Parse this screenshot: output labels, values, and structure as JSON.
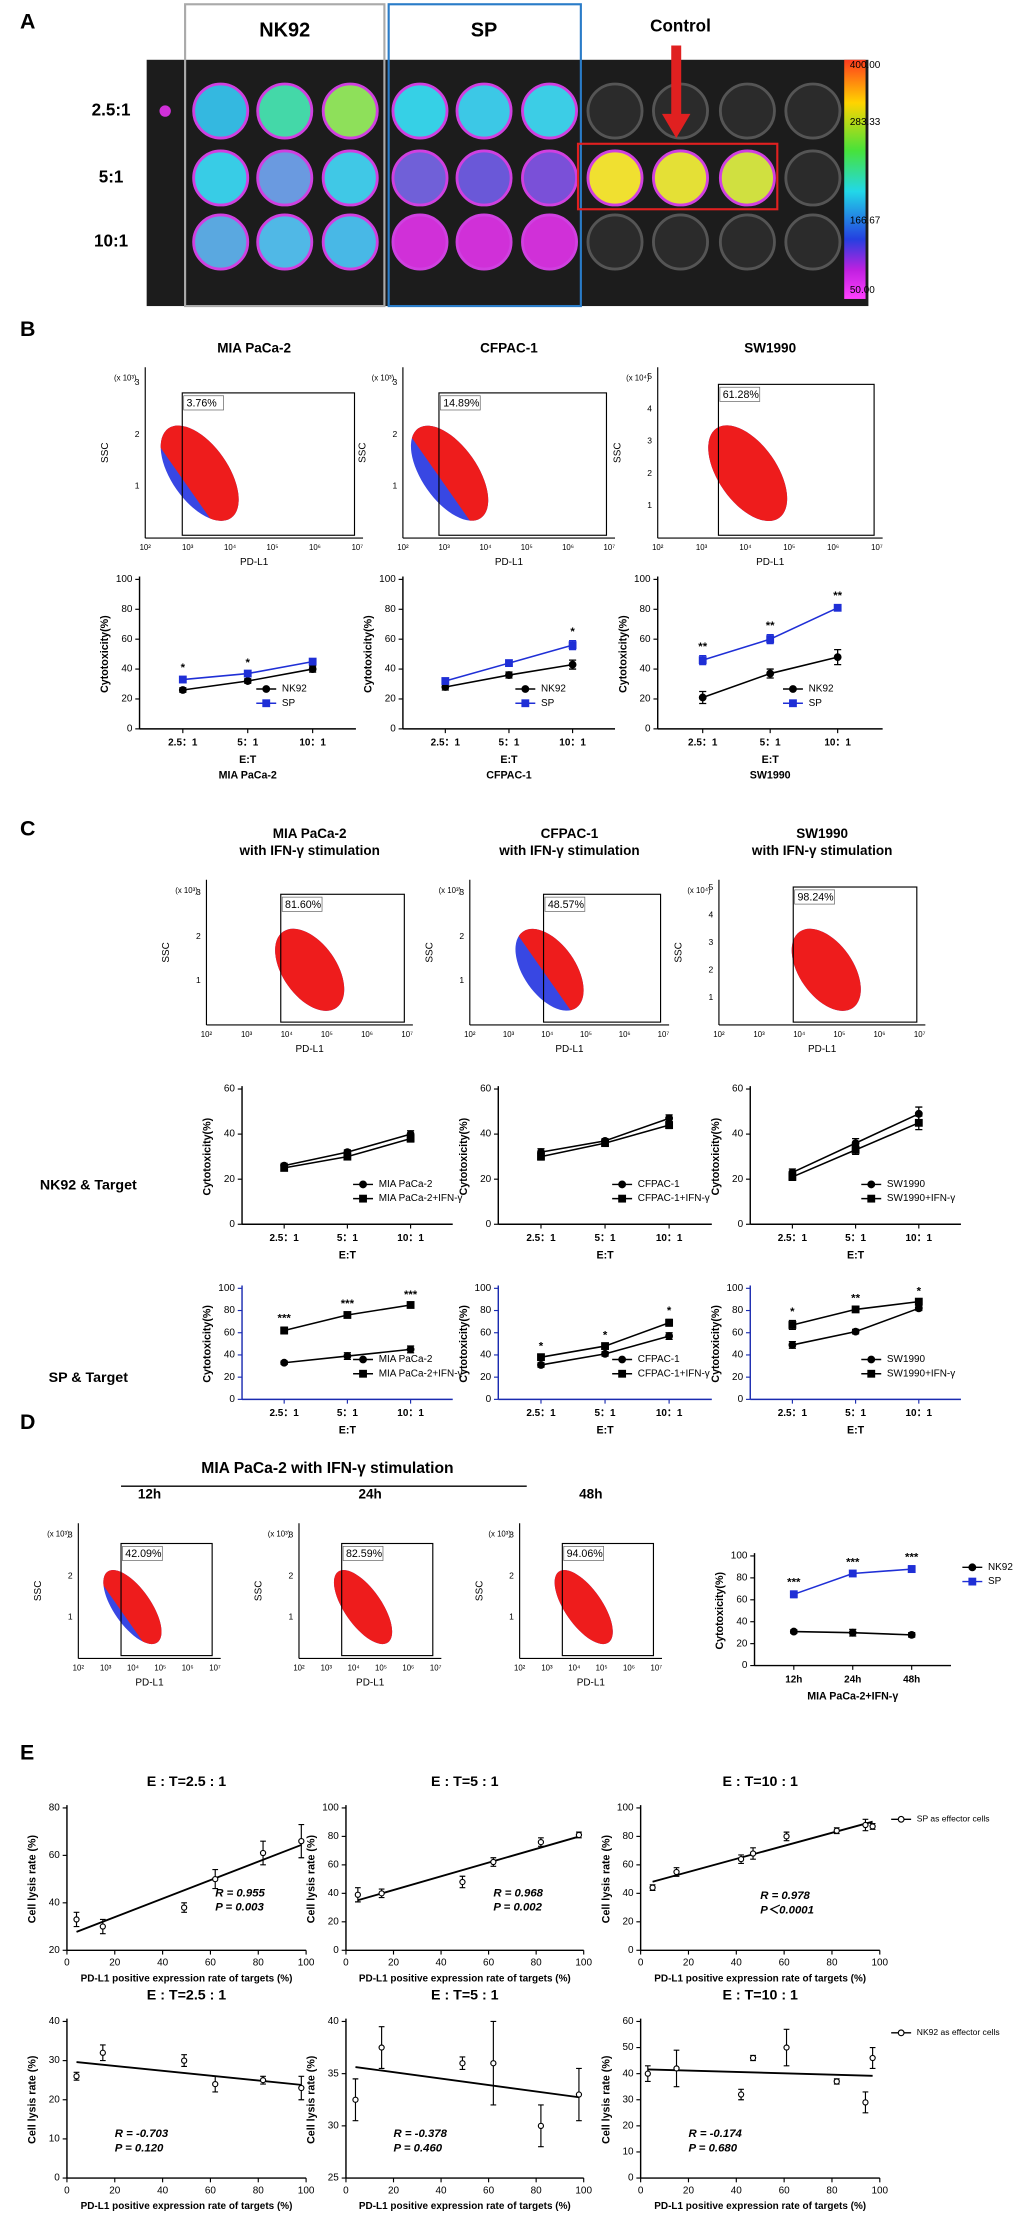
{
  "panel_labels": [
    "A",
    "B",
    "C",
    "D",
    "E"
  ],
  "plate": {
    "groups": [
      "NK92",
      "SP",
      "Control"
    ],
    "ratios": [
      "2.5:1",
      "5:1",
      "10:1"
    ],
    "colorbar_ticks": [
      "400.00",
      "283.33",
      "166.67",
      "50.00"
    ]
  },
  "row_labels": [
    "NK92 & Target",
    "SP & Target"
  ],
  "panel_d_title": "MIA PaCa-2 with IFN-γ stimulation",
  "flow_plots": [
    {
      "title": [
        "MIA PaCa-2"
      ],
      "gate": "3.76%",
      "xlabel": "PD-L1",
      "ylabel": "SSC",
      "multiplier": "(x 10³)",
      "yticks": [
        "1",
        "2",
        "3"
      ],
      "xticks": [
        "10²",
        "10³",
        "10⁴",
        "10⁵",
        "10⁶",
        "10⁷"
      ]
    },
    {
      "title": [
        "CFPAC-1"
      ],
      "gate": "14.89%",
      "xlabel": "PD-L1",
      "ylabel": "SSC",
      "multiplier": "(x 10³)",
      "yticks": [
        "1",
        "2",
        "3"
      ],
      "xticks": [
        "10²",
        "10³",
        "10⁴",
        "10⁵",
        "10⁶",
        "10⁷"
      ]
    },
    {
      "title": [
        "SW1990"
      ],
      "gate": "61.28%",
      "xlabel": "PD-L1",
      "ylabel": "SSC",
      "multiplier": "(x 10⁴)",
      "yticks": [
        "1",
        "2",
        "3",
        "4",
        "5"
      ],
      "xticks": [
        "10²",
        "10³",
        "10⁴",
        "10⁵",
        "10⁶",
        "10⁷"
      ]
    },
    {
      "title": [
        "MIA PaCa-2",
        "with IFN-γ stimulation"
      ],
      "gate": "81.60%",
      "xlabel": "PD-L1",
      "ylabel": "SSC",
      "multiplier": "(x 10³)",
      "yticks": [
        "1",
        "2",
        "3"
      ],
      "xticks": [
        "10²",
        "10³",
        "10⁴",
        "10⁵",
        "10⁶",
        "10⁷"
      ]
    },
    {
      "title": [
        "CFPAC-1",
        "with IFN-γ stimulation"
      ],
      "gate": "48.57%",
      "xlabel": "PD-L1",
      "ylabel": "SSC",
      "multiplier": "(x 10³)",
      "yticks": [
        "1",
        "2",
        "3"
      ],
      "xticks": [
        "10²",
        "10³",
        "10⁴",
        "10⁵",
        "10⁶",
        "10⁷"
      ]
    },
    {
      "title": [
        "SW1990",
        "with IFN-γ stimulation"
      ],
      "gate": "98.24%",
      "xlabel": "PD-L1",
      "ylabel": "SSC",
      "multiplier": "(x 10⁴)",
      "yticks": [
        "1",
        "2",
        "3",
        "4",
        "5"
      ],
      "xticks": [
        "10²",
        "10³",
        "10⁴",
        "10⁵",
        "10⁶",
        "10⁷"
      ]
    },
    {
      "title": [
        "12h"
      ],
      "gate": "42.09%",
      "xlabel": "PD-L1",
      "ylabel": "SSC",
      "multiplier": "(x 10³)",
      "yticks": [
        "1",
        "2",
        "3"
      ],
      "xticks": [
        "10²",
        "10³",
        "10⁴",
        "10⁵",
        "10⁶",
        "10⁷"
      ]
    },
    {
      "title": [
        "24h"
      ],
      "gate": "82.59%",
      "xlabel": "PD-L1",
      "ylabel": "SSC",
      "multiplier": "(x 10³)",
      "yticks": [
        "1",
        "2",
        "3"
      ],
      "xticks": [
        "10²",
        "10³",
        "10⁴",
        "10⁵",
        "10⁶",
        "10⁷"
      ]
    },
    {
      "title": [
        "48h"
      ],
      "gate": "94.06%",
      "xlabel": "PD-L1",
      "ylabel": "SSC",
      "multiplier": "(x 10³)",
      "yticks": [
        "1",
        "2",
        "3"
      ],
      "xticks": [
        "10²",
        "10³",
        "10⁴",
        "10⁵",
        "10⁶",
        "10⁷"
      ]
    }
  ],
  "chart_data": [
    {
      "type": "line",
      "ylabel": "Cytotoxicity(%)",
      "xlabel": "E:T",
      "subtitle": "MIA PaCa-2",
      "categories": [
        "2.5：1",
        "5：1",
        "10：1"
      ],
      "ylim": [
        0,
        100
      ],
      "yticks": [
        0,
        20,
        40,
        60,
        80,
        100
      ],
      "legend": "lower right",
      "significance": [
        "*",
        "*",
        null
      ],
      "series": [
        {
          "name": "NK92",
          "color": "#000000",
          "marker": "circle",
          "values": [
            26,
            32,
            40
          ],
          "errors": [
            1.5,
            1.5,
            2
          ]
        },
        {
          "name": "SP",
          "color": "#1f2fd6",
          "marker": "square",
          "values": [
            33,
            37,
            45
          ],
          "errors": [
            2,
            1.5,
            1.5
          ]
        }
      ]
    },
    {
      "type": "line",
      "ylabel": "Cytotoxicity(%)",
      "xlabel": "E:T",
      "subtitle": "CFPAC-1",
      "categories": [
        "2.5：1",
        "5：1",
        "10：1"
      ],
      "ylim": [
        0,
        100
      ],
      "yticks": [
        0,
        20,
        40,
        60,
        80,
        100
      ],
      "legend": "lower right",
      "significance": [
        null,
        null,
        "*"
      ],
      "series": [
        {
          "name": "NK92",
          "color": "#000000",
          "marker": "circle",
          "values": [
            28,
            36,
            43
          ],
          "errors": [
            2,
            2,
            3
          ]
        },
        {
          "name": "SP",
          "color": "#1f2fd6",
          "marker": "square",
          "values": [
            32,
            44,
            56
          ],
          "errors": [
            2,
            2,
            3
          ]
        }
      ]
    },
    {
      "type": "line",
      "ylabel": "Cytotoxicity(%)",
      "xlabel": "E:T",
      "subtitle": "SW1990",
      "categories": [
        "2.5：1",
        "5：1",
        "10：1"
      ],
      "ylim": [
        0,
        100
      ],
      "yticks": [
        0,
        20,
        40,
        60,
        80,
        100
      ],
      "legend": "lower right",
      "significance": [
        "**",
        "**",
        "**"
      ],
      "series": [
        {
          "name": "NK92",
          "color": "#000000",
          "marker": "circle",
          "values": [
            21,
            37,
            48
          ],
          "errors": [
            4,
            3,
            5
          ]
        },
        {
          "name": "SP",
          "color": "#1f2fd6",
          "marker": "square",
          "values": [
            46,
            60,
            81
          ],
          "errors": [
            3,
            3,
            2
          ]
        }
      ]
    },
    {
      "type": "line",
      "ylabel": "Cytotoxicity(%)",
      "xlabel": "E:T",
      "categories": [
        "2.5：1",
        "5：1",
        "10：1"
      ],
      "ylim": [
        0,
        60
      ],
      "yticks": [
        0,
        20,
        40,
        60
      ],
      "legend": "lower right",
      "series": [
        {
          "name": "MIA PaCa-2",
          "color": "#000000",
          "marker": "circle",
          "values": [
            26,
            32,
            40
          ],
          "errors": [
            1,
            1,
            1.5
          ]
        },
        {
          "name": "MIA PaCa-2+IFN-γ",
          "color": "#000000",
          "marker": "square",
          "values": [
            25,
            30,
            38
          ],
          "errors": [
            1,
            1,
            1.5
          ]
        }
      ]
    },
    {
      "type": "line",
      "ylabel": "Cytotoxicity(%)",
      "xlabel": "E:T",
      "categories": [
        "2.5：1",
        "5：1",
        "10：1"
      ],
      "ylim": [
        0,
        60
      ],
      "yticks": [
        0,
        20,
        40,
        60
      ],
      "legend": "lower right",
      "series": [
        {
          "name": "CFPAC-1",
          "color": "#000000",
          "marker": "circle",
          "values": [
            32,
            37,
            47
          ],
          "errors": [
            1.5,
            1,
            1.5
          ]
        },
        {
          "name": "CFPAC-1+IFN-γ",
          "color": "#000000",
          "marker": "square",
          "values": [
            30,
            36,
            44
          ],
          "errors": [
            1.5,
            1,
            1.5
          ]
        }
      ]
    },
    {
      "type": "line",
      "ylabel": "Cytotoxicity(%)",
      "xlabel": "E:T",
      "categories": [
        "2.5：1",
        "5：1",
        "10：1"
      ],
      "ylim": [
        0,
        60
      ],
      "yticks": [
        0,
        20,
        40,
        60
      ],
      "legend": "lower right",
      "series": [
        {
          "name": "SW1990",
          "color": "#000000",
          "marker": "circle",
          "values": [
            23,
            36,
            49
          ],
          "errors": [
            1.5,
            2,
            3
          ]
        },
        {
          "name": "SW1990+IFN-γ",
          "color": "#000000",
          "marker": "square",
          "values": [
            21,
            33,
            45
          ],
          "errors": [
            1.5,
            2,
            3
          ]
        }
      ]
    },
    {
      "type": "line",
      "ylabel": "Cytotoxicity(%)",
      "xlabel": "E:T",
      "categories": [
        "2.5：1",
        "5：1",
        "10：1"
      ],
      "ylim": [
        0,
        100
      ],
      "yticks": [
        0,
        20,
        40,
        60,
        80,
        100
      ],
      "legend": "lower right",
      "axis_color": "#1a2bb0",
      "significance": [
        "***",
        "***",
        "***"
      ],
      "series": [
        {
          "name": "MIA PaCa-2",
          "color": "#000000",
          "marker": "circle",
          "values": [
            33,
            39,
            45
          ],
          "errors": [
            1.5,
            3,
            3
          ]
        },
        {
          "name": "MIA PaCa-2+IFN-γ",
          "color": "#000000",
          "marker": "square",
          "values": [
            62,
            76,
            85
          ],
          "errors": [
            3,
            2,
            1.5
          ]
        }
      ]
    },
    {
      "type": "line",
      "ylabel": "Cytotoxicity(%)",
      "xlabel": "E:T",
      "categories": [
        "2.5：1",
        "5：1",
        "10：1"
      ],
      "ylim": [
        0,
        100
      ],
      "yticks": [
        0,
        20,
        40,
        60,
        80,
        100
      ],
      "legend": "lower right",
      "axis_color": "#1a2bb0",
      "significance": [
        "*",
        "*",
        "*"
      ],
      "series": [
        {
          "name": "CFPAC-1",
          "color": "#000000",
          "marker": "circle",
          "values": [
            31,
            41,
            57
          ],
          "errors": [
            2,
            2,
            3
          ]
        },
        {
          "name": "CFPAC-1+IFN-γ",
          "color": "#000000",
          "marker": "square",
          "values": [
            38,
            48,
            69
          ],
          "errors": [
            2,
            2,
            3
          ]
        }
      ]
    },
    {
      "type": "line",
      "ylabel": "Cytotoxicity(%)",
      "xlabel": "E:T",
      "categories": [
        "2.5：1",
        "5：1",
        "10：1"
      ],
      "ylim": [
        0,
        100
      ],
      "yticks": [
        0,
        20,
        40,
        60,
        80,
        100
      ],
      "legend": "lower right",
      "axis_color": "#1a2bb0",
      "significance": [
        "*",
        "**",
        "*"
      ],
      "series": [
        {
          "name": "SW1990",
          "color": "#000000",
          "marker": "circle",
          "values": [
            49,
            61,
            82
          ],
          "errors": [
            3,
            2,
            2
          ]
        },
        {
          "name": "SW1990+IFN-γ",
          "color": "#000000",
          "marker": "square",
          "values": [
            67,
            81,
            88
          ],
          "errors": [
            4,
            2,
            1.5
          ]
        }
      ]
    },
    {
      "type": "line",
      "ylabel": "Cytotoxicity(%)",
      "xlabel": "MIA PaCa-2+IFN-γ",
      "categories": [
        "12h",
        "24h",
        "48h"
      ],
      "ylim": [
        0,
        100
      ],
      "yticks": [
        0,
        20,
        40,
        60,
        80,
        100
      ],
      "legend": "right outside",
      "significance": [
        "***",
        "***",
        "***"
      ],
      "series": [
        {
          "name": "NK92",
          "color": "#000000",
          "marker": "circle",
          "values": [
            31,
            30,
            28
          ],
          "errors": [
            1.5,
            3,
            2
          ]
        },
        {
          "name": "SP",
          "color": "#1f2fd6",
          "marker": "square",
          "values": [
            65,
            84,
            88
          ],
          "errors": [
            3,
            2,
            3
          ]
        }
      ]
    },
    {
      "type": "scatter",
      "title": "E : T=2.5 : 1",
      "xlabel": "PD-L1 positive expression rate of targets (%)",
      "ylabel": "Cell lysis rate (%)",
      "xlim": [
        0,
        100
      ],
      "xticks": [
        0,
        20,
        40,
        60,
        80,
        100
      ],
      "ylim": [
        20,
        80
      ],
      "yticks": [
        20,
        40,
        60,
        80
      ],
      "annotations": [
        "R = 0.955",
        "P = 0.003"
      ],
      "regression": true,
      "series": [
        {
          "color": "#000000",
          "x": [
            4,
            15,
            49,
            62,
            82,
            98
          ],
          "values": [
            33,
            30,
            38,
            50,
            61,
            66
          ],
          "errors": [
            3,
            3,
            2,
            4,
            5,
            7
          ]
        }
      ]
    },
    {
      "type": "scatter",
      "title": "E : T=5 : 1",
      "xlabel": "PD-L1 positive expression rate of targets (%)",
      "ylabel": "Cell lysis rate (%)",
      "xlim": [
        0,
        100
      ],
      "xticks": [
        0,
        20,
        40,
        60,
        80,
        100
      ],
      "ylim": [
        0,
        100
      ],
      "yticks": [
        0,
        20,
        40,
        60,
        80,
        100
      ],
      "annotations": [
        "R = 0.968",
        "P = 0.002"
      ],
      "regression": true,
      "series": [
        {
          "color": "#000000",
          "x": [
            5,
            15,
            49,
            62,
            82,
            98
          ],
          "values": [
            39,
            40,
            48,
            62,
            76,
            81
          ],
          "errors": [
            5,
            3,
            4,
            3,
            3,
            2
          ]
        }
      ]
    },
    {
      "type": "scatter",
      "title": "E : T=10 : 1",
      "xlabel": "PD-L1 positive expression rate of targets (%)",
      "ylabel": "Cell lysis rate (%)",
      "xlim": [
        0,
        100
      ],
      "xticks": [
        0,
        20,
        40,
        60,
        80,
        100
      ],
      "ylim": [
        0,
        100
      ],
      "yticks": [
        0,
        20,
        40,
        60,
        80,
        100
      ],
      "annotations": [
        "R = 0.978",
        "P＜0.0001"
      ],
      "regression": true,
      "legend": "right outside",
      "series": [
        {
          "name": "SP as effector cells",
          "color": "#000000",
          "x": [
            5,
            15,
            42,
            47,
            61,
            82,
            94,
            97
          ],
          "values": [
            44,
            55,
            64,
            68,
            80,
            84,
            88,
            87
          ],
          "errors": [
            2,
            3,
            3,
            4,
            3,
            2,
            4,
            2
          ]
        }
      ]
    },
    {
      "type": "scatter",
      "title": "E : T=2.5 : 1",
      "xlabel": "PD-L1 positive expression rate of targets (%)",
      "ylabel": "Cell lysis rate (%)",
      "xlim": [
        0,
        100
      ],
      "xticks": [
        0,
        20,
        40,
        60,
        80,
        100
      ],
      "ylim": [
        0,
        40
      ],
      "yticks": [
        0,
        10,
        20,
        30,
        40
      ],
      "annotations": [
        "R = -0.703",
        "P = 0.120"
      ],
      "regression": true,
      "series": [
        {
          "color": "#000000",
          "x": [
            4,
            15,
            49,
            62,
            82,
            98
          ],
          "values": [
            26,
            32,
            30,
            24,
            25,
            23
          ],
          "errors": [
            1,
            2,
            1.5,
            2,
            1,
            3
          ]
        }
      ]
    },
    {
      "type": "scatter",
      "title": "E : T=5 : 1",
      "xlabel": "PD-L1 positive expression rate of targets (%)",
      "ylabel": "Cell lysis rate (%)",
      "xlim": [
        0,
        100
      ],
      "xticks": [
        0,
        20,
        40,
        60,
        80,
        100
      ],
      "ylim": [
        25,
        40
      ],
      "yticks": [
        25,
        30,
        35,
        40
      ],
      "annotations": [
        "R = -0.378",
        "P = 0.460"
      ],
      "regression": true,
      "series": [
        {
          "color": "#000000",
          "x": [
            4,
            15,
            49,
            62,
            82,
            98
          ],
          "values": [
            32.5,
            37.5,
            36,
            36,
            30,
            33
          ],
          "errors": [
            2,
            2,
            0.6,
            4,
            2,
            2.5
          ]
        }
      ]
    },
    {
      "type": "scatter",
      "title": "E : T=10 : 1",
      "xlabel": "PD-L1 positive expression rate of targets (%)",
      "ylabel": "Cell lysis rate (%)",
      "xlim": [
        0,
        100
      ],
      "xticks": [
        0,
        20,
        40,
        60,
        80,
        100
      ],
      "ylim": [
        0,
        60
      ],
      "yticks": [
        0,
        10,
        20,
        30,
        40,
        50,
        60
      ],
      "annotations": [
        "R = -0.174",
        "P = 0.680"
      ],
      "regression": true,
      "legend": "right outside",
      "series": [
        {
          "name": "NK92 as effector cells",
          "color": "#000000",
          "x": [
            3,
            15,
            42,
            47,
            61,
            82,
            94,
            97
          ],
          "values": [
            40,
            42,
            32,
            46,
            50,
            37,
            29,
            46
          ],
          "errors": [
            3,
            7,
            2,
            1,
            7,
            1,
            4,
            4
          ]
        }
      ]
    }
  ]
}
